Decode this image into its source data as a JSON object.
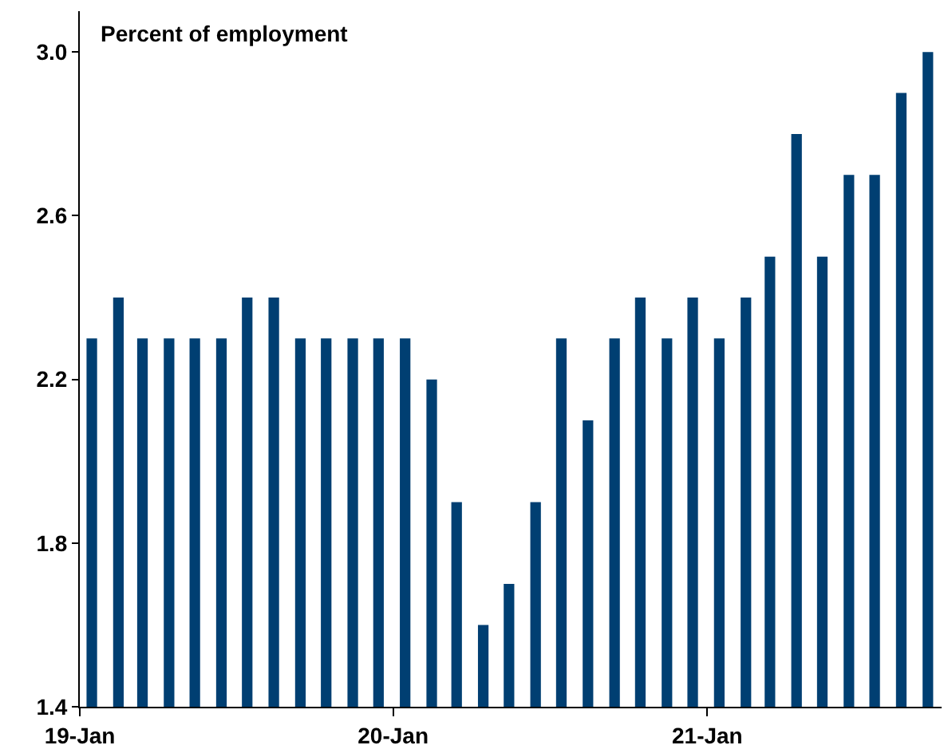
{
  "chart_data": {
    "type": "bar",
    "ylabel": "Percent of employment",
    "x": [
      "2019-01-15",
      "2019-02-15",
      "2019-03-15",
      "2019-04-15",
      "2019-05-15",
      "2019-06-15",
      "2019-07-15",
      "2019-08-15",
      "2019-09-15",
      "2019-10-15",
      "2019-11-15",
      "2019-12-15",
      "2020-01-15",
      "2020-02-15",
      "2020-03-15",
      "2020-04-15",
      "2020-05-15",
      "2020-06-15",
      "2020-07-15",
      "2020-08-15",
      "2020-09-15",
      "2020-10-15",
      "2020-11-15",
      "2020-12-15",
      "2021-01-15",
      "2021-02-15",
      "2021-03-15",
      "2021-04-15",
      "2021-05-15",
      "2021-06-15",
      "2021-07-15",
      "2021-08-15",
      "2021-09-15"
    ],
    "values": [
      2.3,
      2.4,
      2.3,
      2.3,
      2.3,
      2.3,
      2.4,
      2.4,
      2.3,
      2.3,
      2.3,
      2.3,
      2.3,
      2.2,
      1.9,
      1.6,
      1.7,
      1.9,
      2.3,
      2.1,
      2.3,
      2.4,
      2.3,
      2.4,
      2.3,
      2.4,
      2.5,
      2.8,
      2.5,
      2.7,
      2.7,
      2.9,
      3.0
    ],
    "color": "#003f72",
    "xlim": [
      "2019-01-01",
      "2021-10-01"
    ],
    "xticks": [
      {
        "value": "2019-01",
        "label": "19-Jan"
      },
      {
        "value": "2020-01",
        "label": "20-Jan"
      },
      {
        "value": "2021-01",
        "label": "21-Jan"
      }
    ],
    "ylim": [
      1.4,
      3.1
    ],
    "yticks": [
      {
        "value": 1.4,
        "label": "1.4"
      },
      {
        "value": 1.8,
        "label": "1.8"
      },
      {
        "value": 2.2,
        "label": "2.2"
      },
      {
        "value": 2.6,
        "label": "2.6"
      },
      {
        "value": 3.0,
        "label": "3.0"
      }
    ],
    "grid": false,
    "legend": false
  }
}
